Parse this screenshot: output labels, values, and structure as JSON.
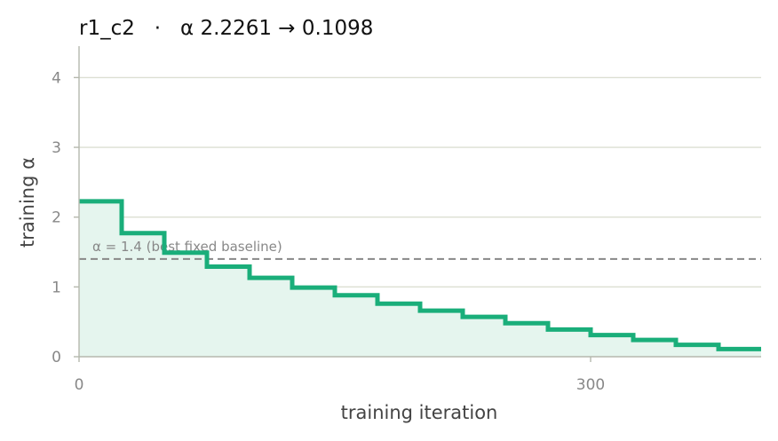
{
  "chart_data": {
    "type": "line",
    "title": "r1_c2   ·   α 2.2261 → 0.1098",
    "xlabel": "training iteration",
    "ylabel": "training α",
    "xlim": [
      0,
      400
    ],
    "ylim": [
      0,
      4.45
    ],
    "x_ticks": [
      0,
      300
    ],
    "y_ticks": [
      0,
      1,
      2,
      3,
      4
    ],
    "grid": "horizontal",
    "step": "post",
    "series": [
      {
        "color": "#1aae7a",
        "fill": "#e5f5ee",
        "x": [
          0,
          25,
          50,
          75,
          100,
          125,
          150,
          175,
          200,
          225,
          250,
          275,
          300,
          325,
          350,
          375,
          400
        ],
        "y": [
          2.2261,
          1.77,
          1.49,
          1.29,
          1.13,
          0.99,
          0.88,
          0.76,
          0.66,
          0.57,
          0.48,
          0.39,
          0.31,
          0.24,
          0.17,
          0.1098,
          0.1098
        ]
      }
    ],
    "reference_line": {
      "value": 1.4,
      "label": "α = 1.4 (best fixed baseline)",
      "color": "#888888",
      "style": "dashed"
    }
  }
}
